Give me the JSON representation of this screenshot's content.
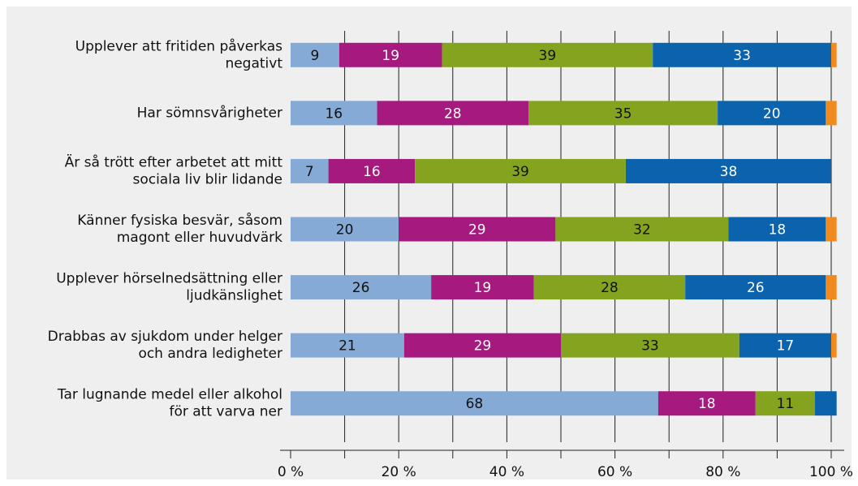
{
  "chart_data": {
    "type": "stacked_barh",
    "categories": [
      [
        "Upplever att fritiden påverkas",
        "negativt"
      ],
      [
        "Har sömnsvårigheter"
      ],
      [
        "Är så trött efter arbetet att mitt",
        "sociala liv blir lidande"
      ],
      [
        "Känner fysiska besvär, såsom",
        "magont eller huvudvärk"
      ],
      [
        "Upplever hörselnedsättning eller",
        "ljudkänslighet"
      ],
      [
        "Drabbas av sjukdom under helger",
        "och andra ledigheter"
      ],
      [
        "Tar lugnande medel eller alkohol",
        "för att varva ner"
      ]
    ],
    "series": [
      {
        "color": "#85aad6",
        "values": [
          9,
          16,
          7,
          20,
          26,
          21,
          68
        ]
      },
      {
        "color": "#a6197f",
        "values": [
          19,
          28,
          16,
          29,
          19,
          29,
          18
        ]
      },
      {
        "color": "#84a31e",
        "values": [
          39,
          35,
          39,
          32,
          28,
          33,
          11
        ]
      },
      {
        "color": "#0b62ad",
        "values": [
          33,
          20,
          38,
          18,
          26,
          17,
          4
        ]
      },
      {
        "color": "#f08a1c",
        "values": [
          1,
          2,
          0,
          2,
          2,
          1,
          0
        ]
      }
    ],
    "xlim": [
      0,
      100
    ],
    "xticks": [
      {
        "value": 0,
        "label": "0 %"
      },
      {
        "value": 20,
        "label": "20 %"
      },
      {
        "value": 40,
        "label": "40 %"
      },
      {
        "value": 60,
        "label": "60 %"
      },
      {
        "value": 80,
        "label": "80 %"
      },
      {
        "value": 100,
        "label": "100 %"
      }
    ],
    "minor_xticks": [
      10,
      30,
      50,
      70,
      90
    ],
    "grid": true
  }
}
